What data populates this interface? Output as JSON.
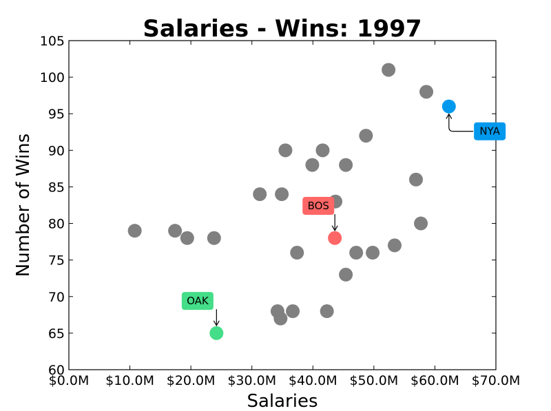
{
  "chart_data": {
    "type": "scatter",
    "title": "Salaries - Wins: 1997",
    "xlabel": "Salaries",
    "ylabel": "Number of Wins",
    "xlim": [
      0,
      70
    ],
    "ylim": [
      60,
      105
    ],
    "x_unit": "millions of dollars",
    "x_ticks": [
      0,
      10,
      20,
      30,
      40,
      50,
      60,
      70
    ],
    "x_tick_labels": [
      "$0.0M",
      "$10.0M",
      "$20.0M",
      "$30.0M",
      "$40.0M",
      "$50.0M",
      "$60.0M",
      "$70.0M"
    ],
    "y_ticks": [
      60,
      65,
      70,
      75,
      80,
      85,
      90,
      95,
      100,
      105
    ],
    "y_tick_labels": [
      "60",
      "65",
      "70",
      "75",
      "80",
      "85",
      "90",
      "95",
      "100",
      "105"
    ],
    "grid": false,
    "default_color": "#808080",
    "points": [
      {
        "x": 10.8,
        "y": 79
      },
      {
        "x": 17.4,
        "y": 79
      },
      {
        "x": 19.4,
        "y": 78
      },
      {
        "x": 23.8,
        "y": 78
      },
      {
        "x": 31.3,
        "y": 84
      },
      {
        "x": 34.9,
        "y": 84
      },
      {
        "x": 35.5,
        "y": 90
      },
      {
        "x": 41.6,
        "y": 90
      },
      {
        "x": 39.9,
        "y": 88
      },
      {
        "x": 45.4,
        "y": 88
      },
      {
        "x": 48.7,
        "y": 92
      },
      {
        "x": 52.4,
        "y": 101
      },
      {
        "x": 58.6,
        "y": 98
      },
      {
        "x": 56.9,
        "y": 86
      },
      {
        "x": 57.7,
        "y": 80
      },
      {
        "x": 53.4,
        "y": 77
      },
      {
        "x": 49.8,
        "y": 76
      },
      {
        "x": 47.1,
        "y": 76
      },
      {
        "x": 45.4,
        "y": 73
      },
      {
        "x": 43.7,
        "y": 83
      },
      {
        "x": 37.4,
        "y": 76
      },
      {
        "x": 34.2,
        "y": 68
      },
      {
        "x": 36.7,
        "y": 68
      },
      {
        "x": 34.7,
        "y": 67
      },
      {
        "x": 42.3,
        "y": 68
      }
    ],
    "highlighted": [
      {
        "label": "NYA",
        "x": 62.3,
        "y": 96,
        "color": "#0099ee",
        "label_x": 69.0,
        "label_y": 92.6
      },
      {
        "label": "BOS",
        "x": 43.6,
        "y": 78,
        "color": "#ff6666",
        "label_x": 40.9,
        "label_y": 82.4
      },
      {
        "label": "OAK",
        "x": 24.2,
        "y": 65,
        "color": "#44dd88",
        "label_x": 21.1,
        "label_y": 69.4
      }
    ]
  }
}
